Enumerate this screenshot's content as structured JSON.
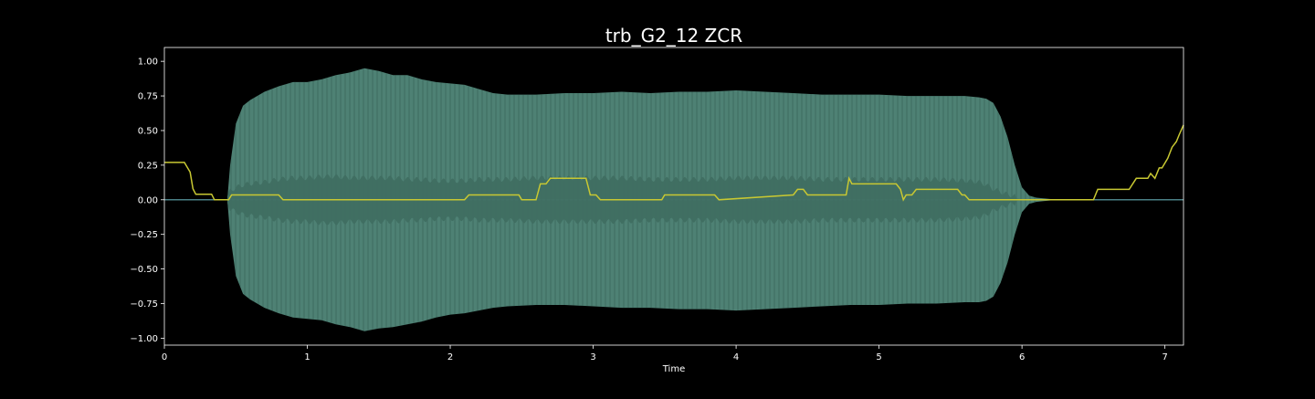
{
  "chart_data": {
    "type": "line",
    "title": "trb_G2_12 ZCR",
    "xlabel": "Time",
    "ylabel": "",
    "xlim": [
      0,
      7.13
    ],
    "ylim": [
      -1.05,
      1.1
    ],
    "x_ticks": [
      0,
      1,
      2,
      3,
      4,
      5,
      6,
      7
    ],
    "x_tick_labels": [
      "0",
      "1",
      "2",
      "3",
      "4",
      "5",
      "6",
      "7"
    ],
    "y_ticks": [
      1.0,
      0.75,
      0.5,
      0.25,
      0.0,
      -0.25,
      -0.5,
      -0.75,
      -1.0
    ],
    "y_tick_labels": [
      "1.00",
      "0.75",
      "0.50",
      "0.25",
      "0.00",
      "−0.25",
      "−0.50",
      "−0.75",
      "−1.00"
    ],
    "grid": false,
    "colors": {
      "background": "#000000",
      "axes": "#ffffff",
      "waveform": "#5f9e8e",
      "waveform_inner": "#3f6d61",
      "zcr_line": "#c8c832",
      "baseline": "#4a7f86"
    },
    "series": [
      {
        "kind": "waveform_envelope",
        "x": [
          0,
          0.44,
          0.46,
          0.5,
          0.55,
          0.6,
          0.7,
          0.8,
          0.9,
          1.0,
          1.1,
          1.2,
          1.3,
          1.4,
          1.5,
          1.6,
          1.7,
          1.8,
          1.9,
          2.0,
          2.1,
          2.2,
          2.3,
          2.4,
          2.6,
          2.8,
          3.0,
          3.2,
          3.4,
          3.6,
          3.8,
          4.0,
          4.2,
          4.4,
          4.6,
          4.8,
          5.0,
          5.2,
          5.4,
          5.6,
          5.7,
          5.75,
          5.8,
          5.85,
          5.9,
          5.95,
          6.0,
          6.05,
          6.1,
          6.2,
          6.3,
          6.5,
          7.13
        ],
        "upper": [
          0,
          0,
          0.25,
          0.55,
          0.68,
          0.72,
          0.78,
          0.82,
          0.85,
          0.85,
          0.87,
          0.9,
          0.92,
          0.95,
          0.93,
          0.9,
          0.9,
          0.87,
          0.85,
          0.84,
          0.83,
          0.8,
          0.77,
          0.76,
          0.76,
          0.77,
          0.77,
          0.78,
          0.77,
          0.78,
          0.78,
          0.79,
          0.78,
          0.77,
          0.76,
          0.76,
          0.76,
          0.75,
          0.75,
          0.75,
          0.74,
          0.73,
          0.7,
          0.6,
          0.45,
          0.25,
          0.09,
          0.03,
          0.015,
          0.005,
          0.002,
          0.0,
          0.0
        ],
        "lower": [
          0,
          0,
          -0.25,
          -0.55,
          -0.68,
          -0.72,
          -0.78,
          -0.82,
          -0.85,
          -0.86,
          -0.87,
          -0.9,
          -0.92,
          -0.95,
          -0.93,
          -0.92,
          -0.9,
          -0.88,
          -0.85,
          -0.83,
          -0.82,
          -0.8,
          -0.78,
          -0.77,
          -0.76,
          -0.76,
          -0.77,
          -0.78,
          -0.78,
          -0.79,
          -0.79,
          -0.8,
          -0.79,
          -0.78,
          -0.77,
          -0.76,
          -0.76,
          -0.75,
          -0.75,
          -0.74,
          -0.74,
          -0.73,
          -0.7,
          -0.6,
          -0.45,
          -0.25,
          -0.09,
          -0.03,
          -0.015,
          -0.005,
          -0.002,
          0.0,
          0.0
        ],
        "inner_upper": [
          0,
          0,
          0.05,
          0.07,
          0.09,
          0.1,
          0.11,
          0.13,
          0.14,
          0.14,
          0.15,
          0.15,
          0.14,
          0.14,
          0.14,
          0.14,
          0.13,
          0.13,
          0.12,
          0.12,
          0.12,
          0.13,
          0.13,
          0.13,
          0.14,
          0.14,
          0.14,
          0.14,
          0.13,
          0.13,
          0.13,
          0.14,
          0.14,
          0.14,
          0.13,
          0.13,
          0.13,
          0.13,
          0.13,
          0.12,
          0.11,
          0.09,
          0.06,
          0.04,
          0.02,
          0.01,
          0.004,
          0.002,
          0.001,
          0.0,
          0.0,
          0.0,
          0.0
        ],
        "inner_lower": [
          0,
          0,
          -0.05,
          -0.07,
          -0.09,
          -0.1,
          -0.11,
          -0.13,
          -0.14,
          -0.14,
          -0.15,
          -0.15,
          -0.14,
          -0.14,
          -0.14,
          -0.14,
          -0.13,
          -0.13,
          -0.12,
          -0.12,
          -0.12,
          -0.13,
          -0.13,
          -0.13,
          -0.14,
          -0.14,
          -0.14,
          -0.14,
          -0.13,
          -0.13,
          -0.13,
          -0.14,
          -0.14,
          -0.14,
          -0.13,
          -0.13,
          -0.13,
          -0.13,
          -0.13,
          -0.12,
          -0.11,
          -0.09,
          -0.06,
          -0.04,
          -0.02,
          -0.01,
          -0.004,
          -0.002,
          -0.001,
          0.0,
          0.0,
          0.0,
          0.0
        ]
      },
      {
        "kind": "zcr_line",
        "x": [
          0,
          0.14,
          0.18,
          0.2,
          0.22,
          0.25,
          0.33,
          0.35,
          0.45,
          0.47,
          0.8,
          0.83,
          2.1,
          2.13,
          2.48,
          2.5,
          2.6,
          2.63,
          2.67,
          2.7,
          2.95,
          2.98,
          3.02,
          3.05,
          3.48,
          3.5,
          3.85,
          3.88,
          4.4,
          4.43,
          4.47,
          4.5,
          4.77,
          4.79,
          4.81,
          4.83,
          5.12,
          5.15,
          5.17,
          5.19,
          5.23,
          5.26,
          5.55,
          5.58,
          5.6,
          5.63,
          6.5,
          6.53,
          6.75,
          6.8,
          6.88,
          6.9,
          6.93,
          6.96,
          6.98,
          7.02,
          7.05,
          7.08,
          7.1,
          7.13
        ],
        "y": [
          0.27,
          0.27,
          0.2,
          0.08,
          0.04,
          0.04,
          0.04,
          0.0,
          0.0,
          0.035,
          0.035,
          0.0,
          0.0,
          0.035,
          0.035,
          0.0,
          0.0,
          0.115,
          0.115,
          0.155,
          0.155,
          0.035,
          0.035,
          0.0,
          0.0,
          0.035,
          0.035,
          0.0,
          0.035,
          0.075,
          0.075,
          0.035,
          0.035,
          0.155,
          0.115,
          0.115,
          0.115,
          0.075,
          0.0,
          0.035,
          0.035,
          0.075,
          0.075,
          0.035,
          0.035,
          0.0,
          0.0,
          0.075,
          0.075,
          0.155,
          0.155,
          0.19,
          0.155,
          0.23,
          0.23,
          0.3,
          0.38,
          0.42,
          0.47,
          0.54
        ]
      }
    ]
  }
}
